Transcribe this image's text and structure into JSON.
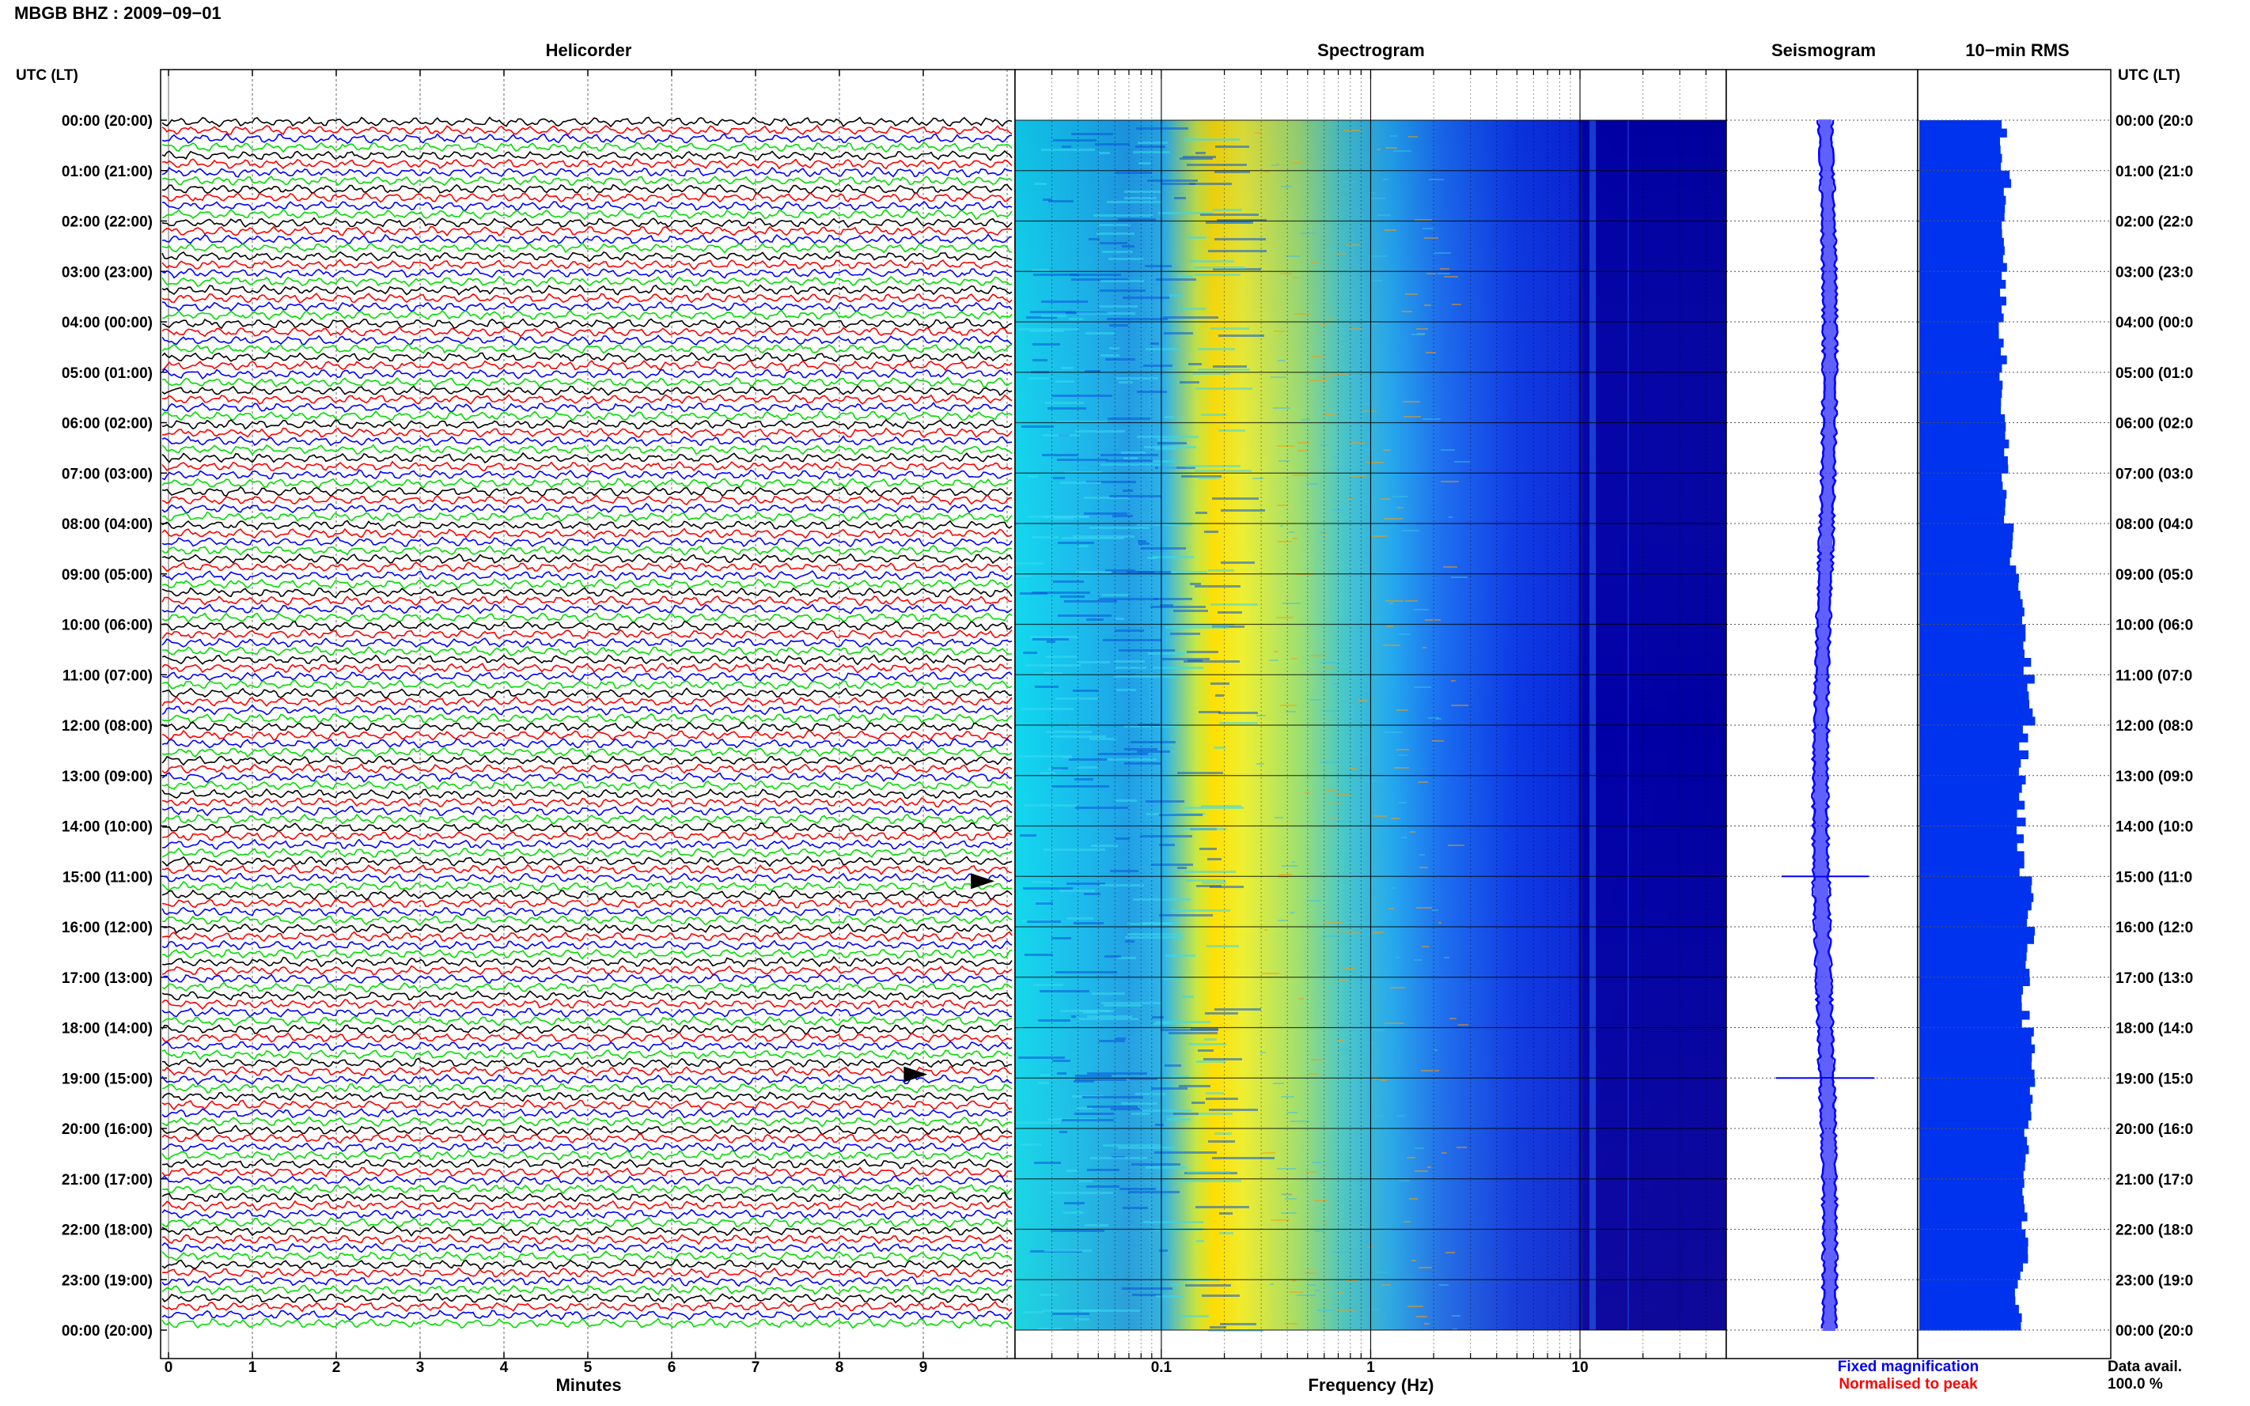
{
  "header": {
    "station_title": "MBGB BHZ : 2009−09−01"
  },
  "panels": {
    "helicorder": "Helicorder",
    "spectrogram": "Spectrogram",
    "seismogram": "Seismogram",
    "rms": "10−min RMS"
  },
  "axes": {
    "time_label_left": "UTC (LT)",
    "time_label_right": "UTC (LT)",
    "hour_labels": [
      "00:00 (20:00)",
      "01:00 (21:00)",
      "02:00 (22:00)",
      "03:00 (23:00)",
      "04:00 (00:00)",
      "05:00 (01:00)",
      "06:00 (02:00)",
      "07:00 (03:00)",
      "08:00 (04:00)",
      "09:00 (05:00)",
      "10:00 (06:00)",
      "11:00 (07:00)",
      "12:00 (08:00)",
      "13:00 (09:00)",
      "14:00 (10:00)",
      "15:00 (11:00)",
      "16:00 (12:00)",
      "17:00 (13:00)",
      "18:00 (14:00)",
      "19:00 (15:00)",
      "20:00 (16:00)",
      "21:00 (17:00)",
      "22:00 (18:00)",
      "23:00 (19:00)",
      "00:00 (20:00)"
    ],
    "hour_labels_right": [
      "00:00 (20:0",
      "01:00 (21:0",
      "02:00 (22:0",
      "03:00 (23:0",
      "04:00 (00:0",
      "05:00 (01:0",
      "06:00 (02:0",
      "07:00 (03:0",
      "08:00 (04:0",
      "09:00 (05:0",
      "10:00 (06:0",
      "11:00 (07:0",
      "12:00 (08:0",
      "13:00 (09:0",
      "14:00 (10:0",
      "15:00 (11:0",
      "16:00 (12:0",
      "17:00 (13:0",
      "18:00 (14:0",
      "19:00 (15:0",
      "20:00 (16:0",
      "21:00 (17:0",
      "22:00 (18:0",
      "23:00 (19:0",
      "00:00 (20:0"
    ],
    "minutes_label": "Minutes",
    "minute_ticks": [
      "0",
      "1",
      "2",
      "3",
      "4",
      "5",
      "6",
      "7",
      "8",
      "9"
    ],
    "frequency_label": "Frequency (Hz)",
    "frequency_ticks": [
      "0.1",
      "1",
      "10"
    ]
  },
  "legend": {
    "fixed": "Fixed magnification",
    "normalised": "Normalised to peak",
    "fixed_color": "#0000ff",
    "normalised_color": "#ff0000"
  },
  "data_availability": {
    "label": "Data avail.",
    "value": "100.0 %"
  },
  "chart_data": [
    {
      "type": "line",
      "title": "Helicorder",
      "xlabel": "Minutes",
      "xlim": [
        0,
        10
      ],
      "rows": 144,
      "trace_colors": [
        "#000000",
        "#ff0000",
        "#0000ff",
        "#00dd00"
      ],
      "events": [
        {
          "time": "15:00",
          "minute": 9.7
        },
        {
          "time": "18:50",
          "minute": 8.9
        }
      ]
    },
    {
      "type": "heatmap",
      "title": "Spectrogram",
      "xlabel": "Frequency (Hz)",
      "x_scale": "log",
      "xlim": [
        0.02,
        50
      ],
      "colormap": [
        "#00ddee",
        "#1a9be0",
        "#ffee00",
        "#ff8800",
        "#2ac3ef",
        "#0a30e0",
        "#0000aa"
      ],
      "peak_band_hz": [
        0.18,
        0.3
      ]
    },
    {
      "type": "line",
      "title": "Seismogram",
      "color": "#0000ff",
      "amplitude_relative": [
        1.0,
        1.0,
        1.0,
        1.0,
        1.0,
        1.0,
        1.0,
        1.0,
        1.0,
        1.0,
        1.0,
        1.0,
        1.1,
        1.1,
        1.1,
        1.15,
        1.1,
        1.1,
        1.1,
        1.1,
        1.0,
        1.0,
        1.0,
        1.0
      ],
      "spikes": [
        {
          "time": "15:00",
          "size": 2.3
        },
        {
          "time": "19:00",
          "size": 2.6
        }
      ]
    },
    {
      "type": "bar",
      "title": "10−min RMS",
      "orientation": "horizontal",
      "color": "#0033ee",
      "hourly_values_relative": [
        0.72,
        0.76,
        0.74,
        0.72,
        0.72,
        0.72,
        0.74,
        0.74,
        0.8,
        0.86,
        0.92,
        0.95,
        0.9,
        0.88,
        0.88,
        0.95,
        0.95,
        0.92,
        0.95,
        0.95,
        0.92,
        0.9,
        0.9,
        0.85
      ]
    }
  ]
}
